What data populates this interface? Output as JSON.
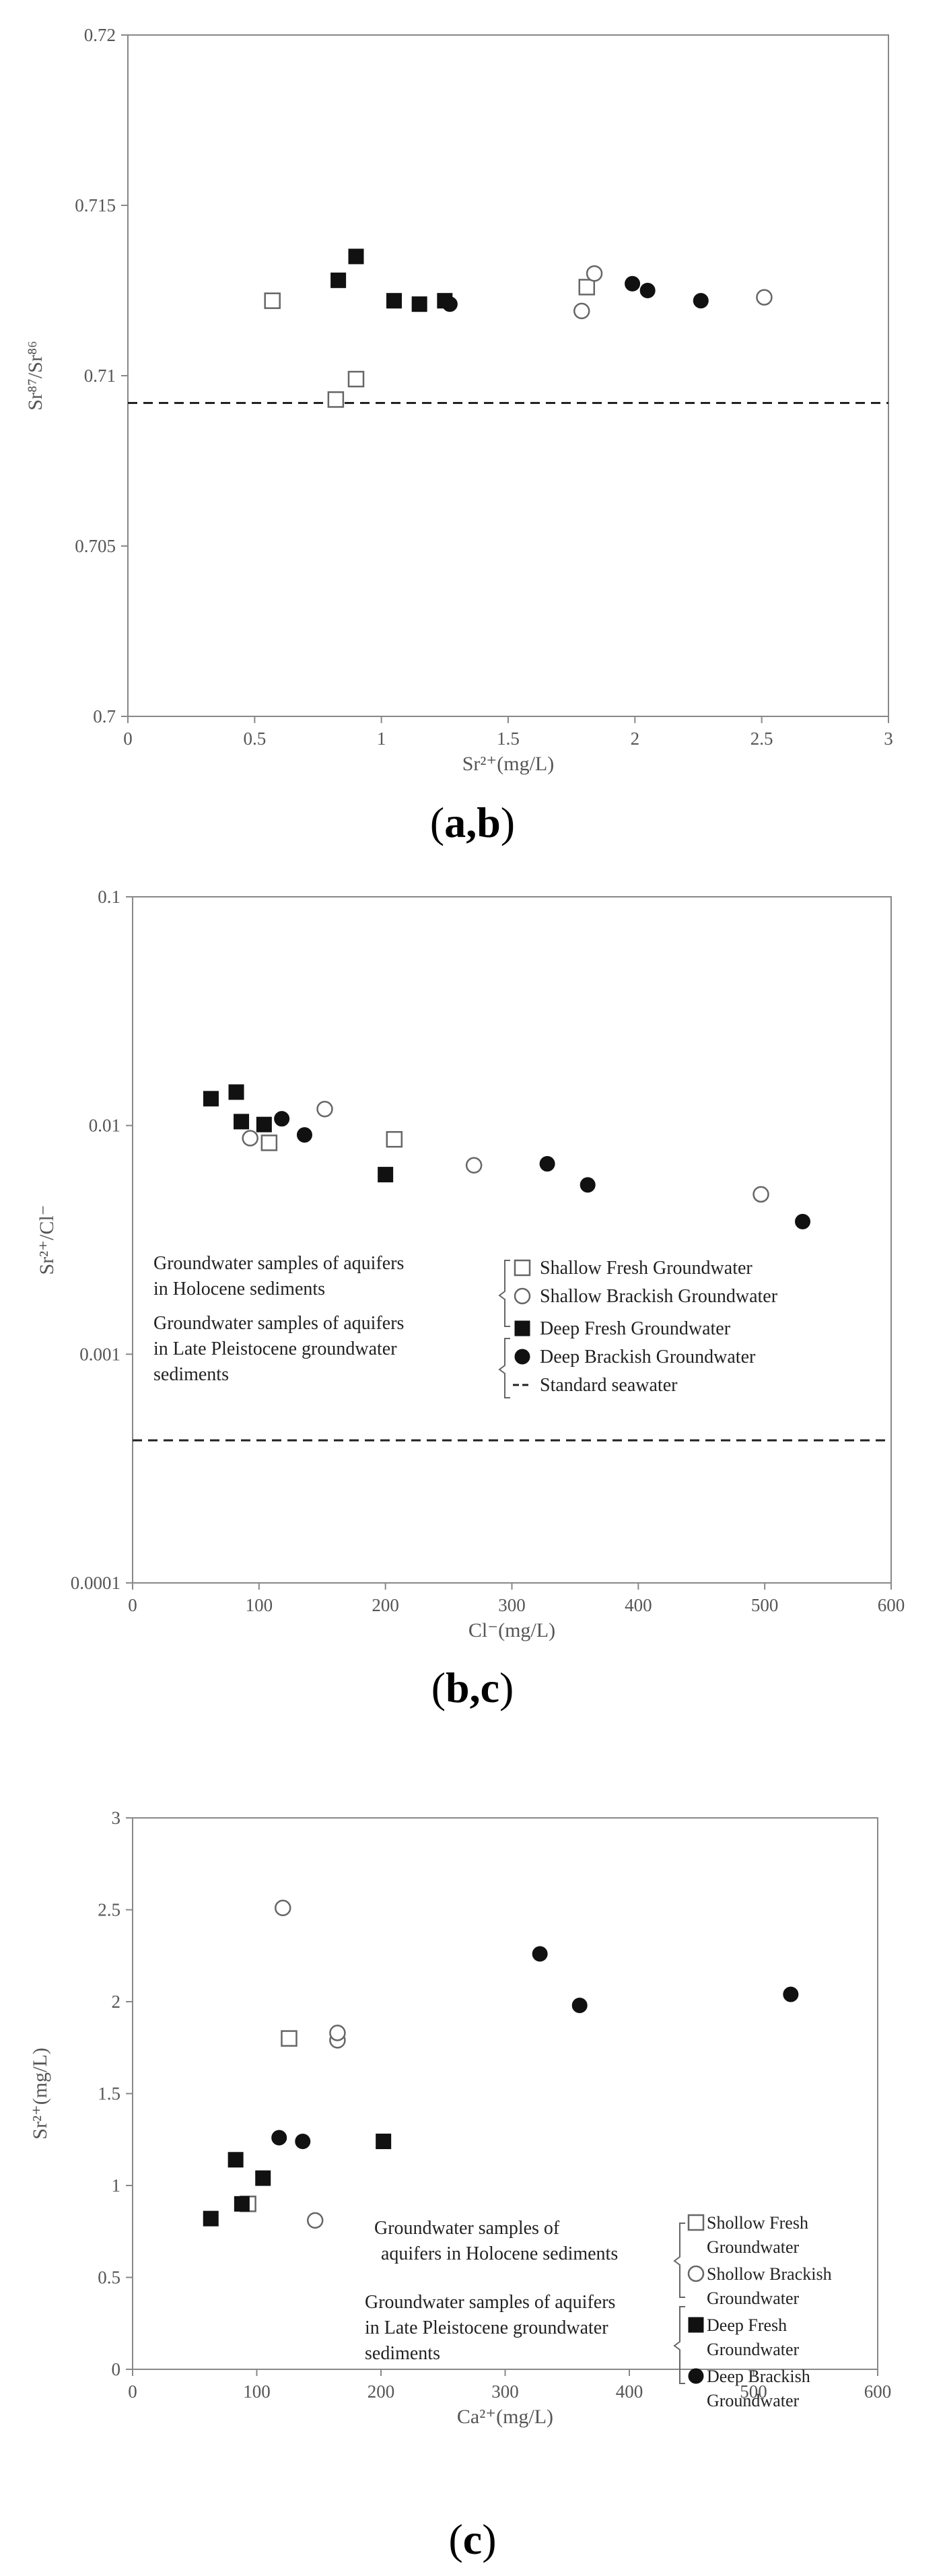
{
  "captions": {
    "a_open": "(",
    "a_bold": "a,b",
    "a_close": ")",
    "b_open": "(",
    "b_bold": "b,c",
    "b_close": ")",
    "c_open": "(",
    "c_bold": "c",
    "c_close": ")"
  },
  "chart_data": [
    {
      "type": "scatter",
      "title": "",
      "xlabel": "Sr²⁺(mg/L)",
      "ylabel": "Sr⁸⁷/Sr⁸⁶",
      "xlim": [
        0,
        3
      ],
      "ylim": [
        0.7,
        0.72
      ],
      "xticks": [
        "0",
        "0.5",
        "1",
        "1.5",
        "2",
        "2.5",
        "3"
      ],
      "yticks": [
        "0.7",
        "0.705",
        "0.71",
        "0.715",
        "0.72"
      ],
      "grid": false,
      "reference_line": 0.7092,
      "series": [
        {
          "marker": "open-square",
          "points": [
            [
              0.57,
              0.7122
            ],
            [
              0.82,
              0.7093
            ],
            [
              0.9,
              0.7099
            ],
            [
              1.81,
              0.7126
            ]
          ]
        },
        {
          "marker": "open-circle",
          "points": [
            [
              1.79,
              0.7119
            ],
            [
              1.84,
              0.713
            ],
            [
              2.51,
              0.7123
            ]
          ]
        },
        {
          "marker": "filled-square",
          "points": [
            [
              0.83,
              0.7128
            ],
            [
              0.9,
              0.7135
            ],
            [
              1.05,
              0.7122
            ],
            [
              1.15,
              0.7121
            ],
            [
              1.25,
              0.7122
            ]
          ]
        },
        {
          "marker": "filled-circle",
          "points": [
            [
              1.27,
              0.7121
            ],
            [
              1.99,
              0.7127
            ],
            [
              2.05,
              0.7125
            ],
            [
              2.26,
              0.7122
            ]
          ]
        }
      ]
    },
    {
      "type": "scatter",
      "title": "",
      "xlabel": "Cl⁻(mg/L)",
      "ylabel": "Sr²⁺/Cl⁻",
      "xlim": [
        0,
        600
      ],
      "ylim": [
        0.0001,
        0.1
      ],
      "yscale": "log",
      "xticks": [
        "0",
        "100",
        "200",
        "300",
        "400",
        "500",
        "600"
      ],
      "yticks": [
        "0.0001",
        "0.001",
        "0.01",
        "0.1"
      ],
      "grid": false,
      "reference_line": 0.00042,
      "legend_position": "center-right",
      "legend": {
        "group1": "Groundwater samples of aquifers in Holocene sediments",
        "group2": "Groundwater samples of aquifers in Late Pleistocene groundwater sediments",
        "entries": [
          "Shallow Fresh Groundwater",
          "Shallow Brackish Groundwater",
          "Deep Fresh Groundwater",
          "Deep Brackish Groundwater",
          "Standard seawater"
        ]
      },
      "series": [
        {
          "name": "Shallow Fresh Groundwater",
          "marker": "open-square",
          "points": [
            [
              108,
              0.0084
            ],
            [
              207,
              0.0087
            ]
          ]
        },
        {
          "name": "Shallow Brackish Groundwater",
          "marker": "open-circle",
          "points": [
            [
              93,
              0.0088
            ],
            [
              152,
              0.0118
            ],
            [
              270,
              0.0067
            ],
            [
              497,
              0.005
            ]
          ]
        },
        {
          "name": "Deep Fresh Groundwater",
          "marker": "filled-square",
          "points": [
            [
              62,
              0.0131
            ],
            [
              82,
              0.014
            ],
            [
              86,
              0.0104
            ],
            [
              104,
              0.0101
            ],
            [
              200,
              0.0061
            ]
          ]
        },
        {
          "name": "Deep Brackish Groundwater",
          "marker": "filled-circle",
          "points": [
            [
              118,
              0.0107
            ],
            [
              136,
              0.0091
            ],
            [
              328,
              0.0068
            ],
            [
              360,
              0.0055
            ],
            [
              530,
              0.0038
            ]
          ]
        }
      ]
    },
    {
      "type": "scatter",
      "title": "",
      "xlabel": "Ca²⁺(mg/L)",
      "ylabel": "Sr²⁺(mg/L)",
      "xlim": [
        0,
        600
      ],
      "ylim": [
        0,
        3
      ],
      "xticks": [
        "0",
        "100",
        "200",
        "300",
        "400",
        "500",
        "600"
      ],
      "yticks": [
        "0",
        "0.5",
        "1",
        "1.5",
        "2",
        "2.5",
        "3"
      ],
      "grid": false,
      "legend_position": "center-right",
      "legend": {
        "group1_lines": [
          "Groundwater  samples of",
          "aquifers in Holocene sediments"
        ],
        "group2_lines": [
          "Groundwater samples of aquifers",
          "in Late Pleistocene groundwater",
          "sediments"
        ],
        "entries": [
          [
            "Shollow Fresh",
            "Groundwater"
          ],
          [
            "Shollow Brackish",
            "Groundwater"
          ],
          [
            "Deep Fresh",
            "Groundwater"
          ],
          [
            "Deep Brackish",
            "Groundwater"
          ]
        ]
      },
      "series": [
        {
          "marker": "open-square",
          "points": [
            [
              93,
              0.9
            ],
            [
              126,
              1.8
            ]
          ]
        },
        {
          "marker": "open-circle",
          "points": [
            [
              121,
              2.51
            ],
            [
              147,
              0.81
            ],
            [
              165,
              1.79
            ],
            [
              165,
              1.83
            ]
          ]
        },
        {
          "marker": "filled-square",
          "points": [
            [
              63,
              0.82
            ],
            [
              83,
              1.14
            ],
            [
              88,
              0.9
            ],
            [
              105,
              1.04
            ],
            [
              202,
              1.24
            ]
          ]
        },
        {
          "marker": "filled-circle",
          "points": [
            [
              118,
              1.26
            ],
            [
              137,
              1.24
            ],
            [
              328,
              2.26
            ],
            [
              360,
              1.98
            ],
            [
              530,
              2.04
            ]
          ]
        }
      ]
    }
  ]
}
